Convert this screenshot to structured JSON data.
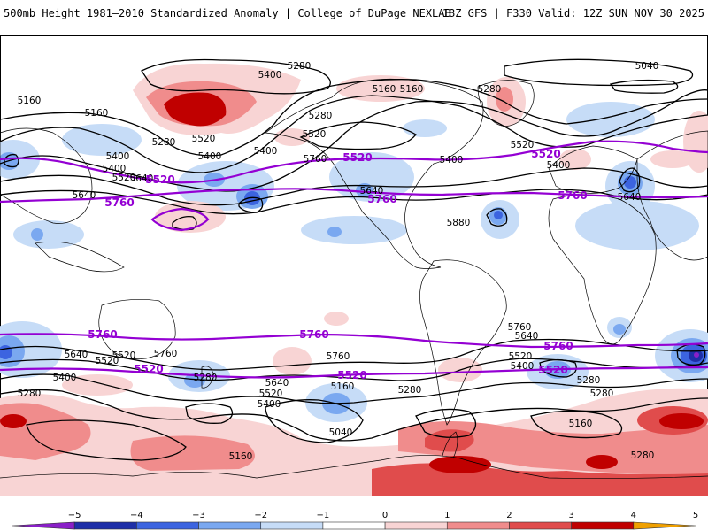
{
  "header": {
    "title_left": "500mb Height 1981–2010 Standardized Anomaly | College of DuPage NEXLAB",
    "title_right": "18Z GFS | F330 Valid: 12Z SUN NOV 30 2025"
  },
  "colors": {
    "anom_neg_1": "#c6dcf7",
    "anom_neg_2": "#7aa8f0",
    "anom_neg_3": "#3c64e0",
    "anom_neg_4": "#1e2fa8",
    "anom_neg_5": "#8a1fc8",
    "anom_pos_1": "#f8d4d4",
    "anom_pos_2": "#f08c8c",
    "anom_pos_3": "#e04c4c",
    "anom_pos_4": "#c00000",
    "anom_pos_5": "#f0a000",
    "contour_black": "#000000",
    "contour_purple": "#9400d3",
    "coastline": "#000000"
  },
  "contour_labels": {
    "l1": "5280",
    "l2": "5400",
    "l3": "5160",
    "l4": "5280",
    "l5": "5520",
    "l6": "5400",
    "l7": "5400",
    "l8": "5520",
    "l9": "5280",
    "l10": "5160",
    "l11": "5040",
    "l12": "5520",
    "l13": "5400",
    "l14": "5160",
    "l15": "5280",
    "l16": "5400",
    "l17": "5520",
    "l18": "5640",
    "l19": "5760",
    "l20": "5880",
    "l21": "5640",
    "l22": "5400",
    "l23": "5520",
    "l24": "5640",
    "l25": "5280",
    "l26": "5400",
    "l27": "5280",
    "l28": "5640",
    "l29": "5520",
    "l30": "5400",
    "l31": "5160",
    "l32": "5280",
    "l33": "5040",
    "l34": "5160",
    "l35": "5640",
    "l36": "5760",
    "l37": "5520",
    "l38": "5400",
    "l39": "5280",
    "l40": "5160",
    "l41": "5280",
    "l42": "5280",
    "l43": "5760",
    "l44": "5640",
    "l45": "5400",
    "l46": "5520",
    "l47": "5640",
    "l48": "5160",
    "l49": "5760"
  },
  "purple_labels": {
    "p1": "5520",
    "p2": "5760",
    "p3": "5520",
    "p4": "5760",
    "p5": "5520",
    "p6": "5760",
    "p7": "5760",
    "p8": "5760",
    "p9": "5520",
    "p10": "5520",
    "p11": "5520",
    "p12": "5760",
    "p13": "5520"
  },
  "colorbar": {
    "ticks": [
      "−5",
      "−4",
      "−3",
      "−2",
      "−1",
      "0",
      "1",
      "2",
      "3",
      "4",
      "5"
    ]
  }
}
